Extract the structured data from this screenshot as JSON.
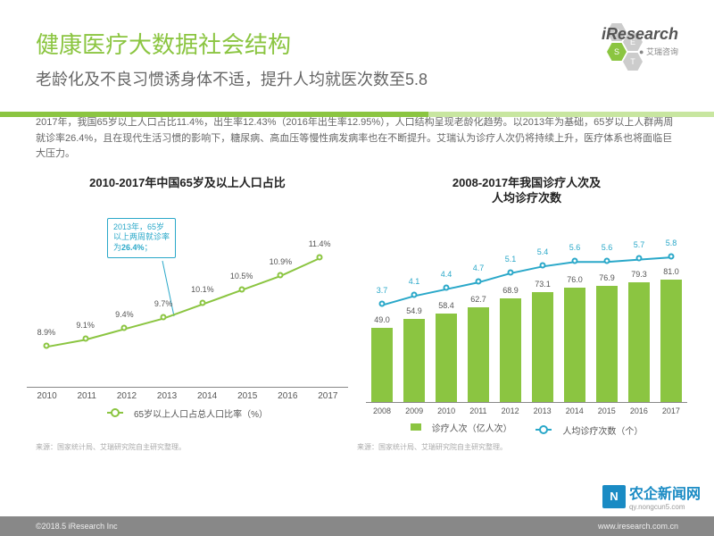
{
  "header": {
    "title": "健康医疗大数据社会结构",
    "title_color": "#8bc541",
    "subtitle": "老龄化及不良习惯诱身体不适，提升人均就医次数至5.8",
    "subtitle_color": "#666",
    "logo_main": "iResearch",
    "logo_sub": "艾瑞咨询",
    "pest_letters": [
      "P",
      "E",
      "S",
      "T"
    ]
  },
  "body_text": "2017年，我国65岁以上人口占比11.4%，出生率12.43%（2016年出生率12.95%），人口结构呈现老龄化趋势。以2013年为基础，65岁以上人群两周就诊率26.4%，且在现代生活习惯的影响下，糖尿病、高血压等慢性病发病率也在不断提升。艾瑞认为诊疗人次仍将持续上升，医疗体系也将面临巨大压力。",
  "chart1": {
    "title": "2010-2017年中国65岁及以上人口占比",
    "type": "line",
    "years": [
      "2010",
      "2011",
      "2012",
      "2013",
      "2014",
      "2015",
      "2016",
      "2017"
    ],
    "values": [
      8.9,
      9.1,
      9.4,
      9.7,
      10.1,
      10.5,
      10.9,
      11.4
    ],
    "labels": [
      "8.9%",
      "9.1%",
      "9.4%",
      "9.7%",
      "10.1%",
      "10.5%",
      "10.9%",
      "11.4%"
    ],
    "ymin": 8,
    "ymax": 12.5,
    "line_color": "#8bc541",
    "marker_color": "#8bc541",
    "label_color": "#555",
    "label_fontsize": 9,
    "legend": "65岁以上人口占总人口比率（%）",
    "callout": {
      "line1": "2013年，65岁",
      "line2": "以上两周就诊率",
      "line3": "为",
      "highlight": "26.4%",
      "suffix": "；"
    }
  },
  "chart2": {
    "title": "2008-2017年我国诊疗人次及\n人均诊疗次数",
    "type": "combo",
    "years": [
      "2008",
      "2009",
      "2010",
      "2011",
      "2012",
      "2013",
      "2014",
      "2015",
      "2016",
      "2017"
    ],
    "bars": [
      49.0,
      54.9,
      58.4,
      62.7,
      68.9,
      73.1,
      76.0,
      76.9,
      79.3,
      81.0
    ],
    "line": [
      3.7,
      4.1,
      4.4,
      4.7,
      5.1,
      5.4,
      5.6,
      5.6,
      5.7,
      5.8
    ],
    "bar_ymax": 90,
    "line_ymax": 7,
    "bar_color": "#8bc541",
    "line_color": "#2aa8c9",
    "bar_label_color": "#555",
    "line_label_color": "#2aa8c9",
    "legend_bar": "诊疗人次（亿人次）",
    "legend_line": "人均诊疗次数（个）"
  },
  "source": "来源：国家统计局、艾瑞研究院自主研究整理。",
  "footer": {
    "left": "©2018.5 iResearch Inc",
    "right": "www.iresearch.com.cn"
  },
  "watermark": {
    "main": "农企新闻网",
    "sub": "qy.nongcun5.com"
  }
}
